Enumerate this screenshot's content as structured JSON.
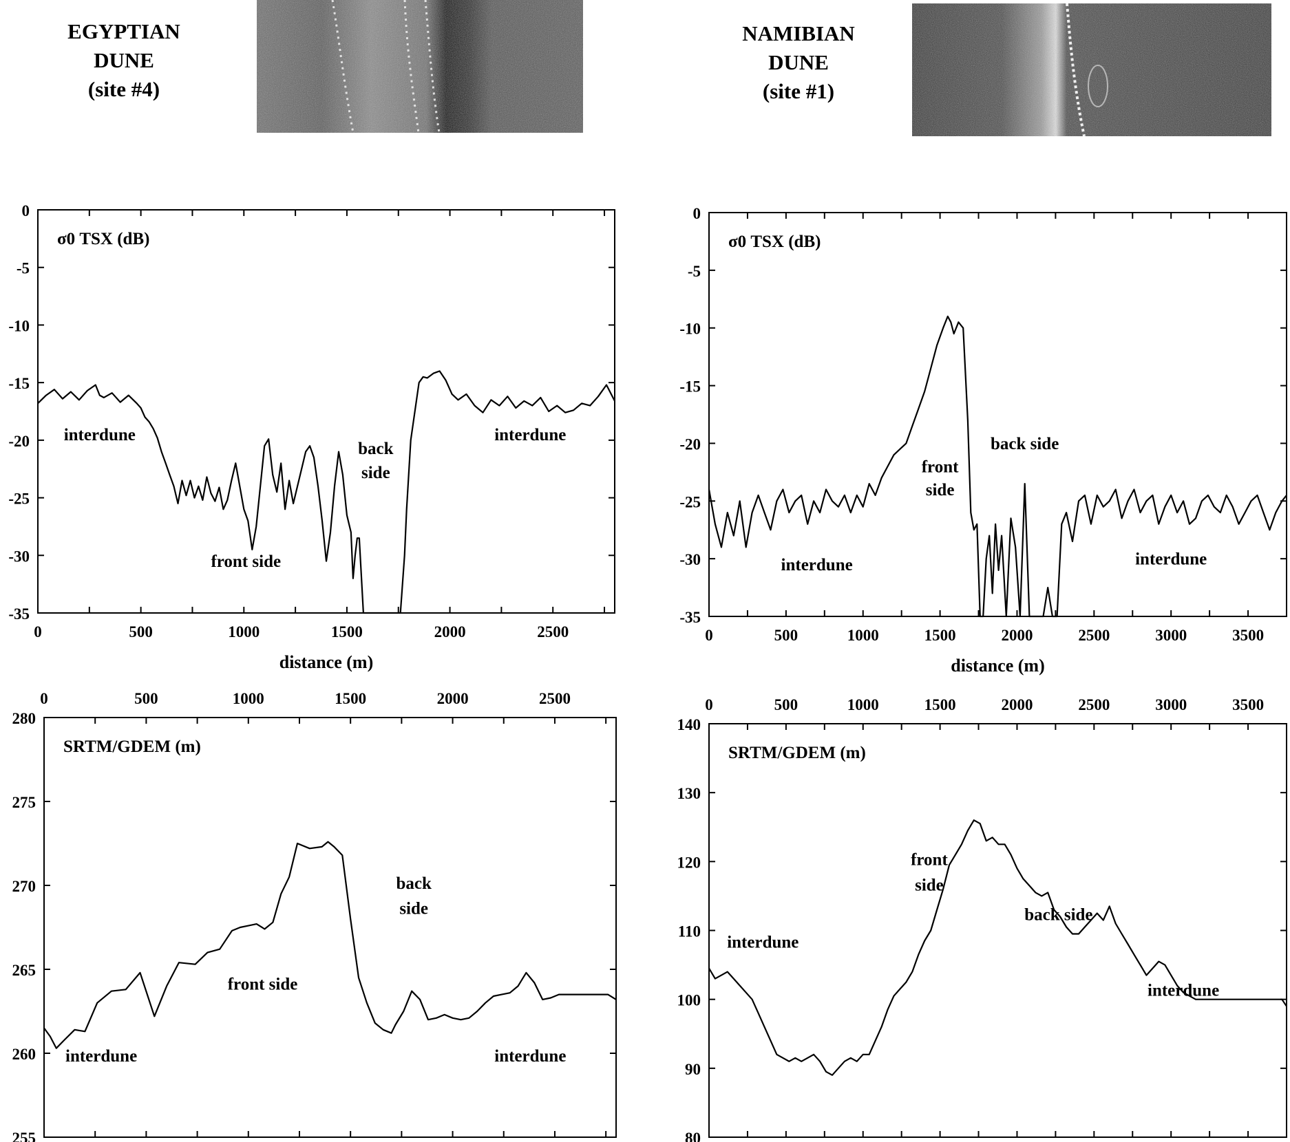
{
  "panels": [
    {
      "title_lines": [
        "EGYPTIAN",
        "DUNE",
        "(site #4)"
      ]
    },
    {
      "title_lines": [
        "NAMIBIAN",
        "DUNE",
        "(site #1)"
      ]
    }
  ],
  "chart_data": [
    {
      "type": "line",
      "panel": "EGYPTIAN DUNE (site #4)",
      "title": "σ0 TSX (dB)",
      "xlabel": "distance (m)",
      "ylabel": "",
      "xlim": [
        0,
        2800
      ],
      "ylim": [
        -35,
        0
      ],
      "xticks": [
        0,
        500,
        1000,
        1500,
        2000,
        2500
      ],
      "yticks": [
        0,
        -5,
        -10,
        -15,
        -20,
        -25,
        -30,
        -35
      ],
      "x_axis_position": "bottom",
      "grid": false,
      "annotations": [
        {
          "text": "interdune",
          "x": 300,
          "y": -20
        },
        {
          "text": "front side",
          "x": 1010,
          "y": -31
        },
        {
          "text": "back",
          "x": 1640,
          "y": -21.2
        },
        {
          "text": "side",
          "x": 1640,
          "y": -23.3
        },
        {
          "text": "interdune",
          "x": 2390,
          "y": -20
        }
      ],
      "series": [
        {
          "x": [
            0,
            40,
            80,
            120,
            160,
            200,
            240,
            280,
            300,
            320,
            360,
            400,
            440,
            480,
            500,
            520,
            540,
            560,
            580,
            600,
            620,
            640,
            660,
            680,
            700,
            720,
            740,
            760,
            780,
            800,
            820,
            840,
            860,
            880,
            900,
            920,
            940,
            960,
            980,
            1000,
            1020,
            1040,
            1060,
            1080,
            1100,
            1120,
            1140,
            1160,
            1180,
            1200,
            1220,
            1240,
            1260,
            1280,
            1300,
            1320,
            1340,
            1360,
            1380,
            1400,
            1420,
            1440,
            1460,
            1480,
            1500,
            1520,
            1530,
            1540,
            1550,
            1560,
            1580,
            1600,
            1620,
            1640,
            1660,
            1680,
            1700,
            1720,
            1740,
            1760,
            1780,
            1790,
            1800,
            1810,
            1830,
            1850,
            1870,
            1890,
            1920,
            1950,
            1980,
            2010,
            2040,
            2080,
            2120,
            2160,
            2200,
            2240,
            2280,
            2320,
            2360,
            2400,
            2440,
            2480,
            2520,
            2560,
            2600,
            2640,
            2680,
            2720,
            2760,
            2800
          ],
          "values": [
            -16.8,
            -16.1,
            -15.6,
            -16.4,
            -15.8,
            -16.5,
            -15.7,
            -15.2,
            -16.1,
            -16.3,
            -15.9,
            -16.7,
            -16.1,
            -16.8,
            -17.2,
            -18.0,
            -18.4,
            -19.0,
            -19.8,
            -21.0,
            -22.0,
            -23.0,
            -24.0,
            -25.5,
            -23.5,
            -24.8,
            -23.5,
            -25.0,
            -24.0,
            -25.2,
            -23.2,
            -24.6,
            -25.3,
            -24.1,
            -26.0,
            -25.2,
            -23.5,
            -22.0,
            -24.0,
            -26.0,
            -27.0,
            -29.5,
            -27.5,
            -24.0,
            -20.5,
            -19.9,
            -23.0,
            -24.5,
            -22.0,
            -26.0,
            -23.5,
            -25.5,
            -24.0,
            -22.5,
            -21.0,
            -20.5,
            -21.5,
            -24.0,
            -27.0,
            -30.5,
            -28.0,
            -24.0,
            -21.0,
            -23.0,
            -26.5,
            -28.0,
            -32.0,
            -30.0,
            -28.5,
            -28.5,
            -35,
            -35,
            -35,
            -35,
            -35,
            -35,
            -35,
            -35,
            -35,
            -35,
            -30.0,
            -26.0,
            -23.0,
            -20.0,
            -17.5,
            -15.0,
            -14.5,
            -14.6,
            -14.2,
            -14.0,
            -14.8,
            -16.0,
            -16.5,
            -16.0,
            -17.0,
            -17.6,
            -16.5,
            -17.0,
            -16.2,
            -17.2,
            -16.6,
            -17.0,
            -16.3,
            -17.5,
            -17.0,
            -17.6,
            -17.4,
            -16.8,
            -17.0,
            -16.2,
            -15.2,
            -16.6
          ]
        }
      ]
    },
    {
      "type": "line",
      "panel": "EGYPTIAN DUNE (site #4)",
      "title": "SRTM/GDEM (m)",
      "xlabel": "",
      "ylabel": "",
      "xlim": [
        0,
        2800
      ],
      "ylim": [
        255,
        280
      ],
      "xticks": [
        0,
        500,
        1000,
        1500,
        2000,
        2500
      ],
      "yticks": [
        280,
        275,
        270,
        265,
        260,
        255
      ],
      "x_axis_position": "top",
      "grid": false,
      "annotations": [
        {
          "text": "interdune",
          "x": 280,
          "y": 259.5
        },
        {
          "text": "front side",
          "x": 1070,
          "y": 263.8
        },
        {
          "text": "back",
          "x": 1810,
          "y": 269.8
        },
        {
          "text": "side",
          "x": 1810,
          "y": 268.3
        },
        {
          "text": "interdune",
          "x": 2380,
          "y": 259.5
        }
      ],
      "series": [
        {
          "x": [
            0,
            30,
            60,
            100,
            150,
            200,
            260,
            330,
            400,
            470,
            540,
            600,
            660,
            740,
            800,
            860,
            920,
            960,
            1000,
            1040,
            1080,
            1120,
            1160,
            1200,
            1240,
            1300,
            1360,
            1390,
            1420,
            1460,
            1500,
            1540,
            1580,
            1620,
            1660,
            1700,
            1720,
            1760,
            1800,
            1840,
            1880,
            1920,
            1960,
            2000,
            2040,
            2080,
            2120,
            2160,
            2200,
            2240,
            2280,
            2320,
            2360,
            2400,
            2440,
            2480,
            2520,
            2560,
            2600,
            2640,
            2680,
            2720,
            2760,
            2800
          ],
          "values": [
            261.5,
            261.0,
            260.3,
            260.8,
            261.4,
            261.3,
            263.0,
            263.7,
            263.8,
            264.8,
            262.2,
            264.0,
            265.4,
            265.3,
            266.0,
            266.2,
            267.3,
            267.5,
            267.6,
            267.7,
            267.4,
            267.8,
            269.5,
            270.5,
            272.5,
            272.2,
            272.3,
            272.6,
            272.3,
            271.8,
            268.0,
            264.5,
            263.0,
            261.8,
            261.4,
            261.2,
            261.7,
            262.5,
            263.7,
            263.2,
            262.0,
            262.1,
            262.3,
            262.1,
            262.0,
            262.1,
            262.5,
            263.0,
            263.4,
            263.5,
            263.6,
            264.0,
            264.8,
            264.2,
            263.2,
            263.3,
            263.5,
            263.5,
            263.5,
            263.5,
            263.5,
            263.5,
            263.5,
            263.2
          ]
        }
      ]
    },
    {
      "type": "line",
      "panel": "NAMIBIAN DUNE (site #1)",
      "title": "σ0 TSX (dB)",
      "xlabel": "distance (m)",
      "ylabel": "",
      "xlim": [
        0,
        3750
      ],
      "ylim": [
        -35,
        0
      ],
      "xticks": [
        0,
        500,
        1000,
        1500,
        2000,
        2500,
        3000,
        3500
      ],
      "yticks": [
        0,
        -5,
        -10,
        -15,
        -20,
        -25,
        -30,
        -35
      ],
      "x_axis_position": "bottom",
      "grid": false,
      "annotations": [
        {
          "text": "interdune",
          "x": 700,
          "y": -31
        },
        {
          "text": "front",
          "x": 1500,
          "y": -22.5
        },
        {
          "text": "side",
          "x": 1500,
          "y": -24.5
        },
        {
          "text": "back side",
          "x": 2050,
          "y": -20.5
        },
        {
          "text": "interdune",
          "x": 3000,
          "y": -30.5
        }
      ],
      "series": [
        {
          "x": [
            0,
            40,
            80,
            120,
            160,
            200,
            240,
            280,
            320,
            360,
            400,
            440,
            480,
            520,
            560,
            600,
            640,
            680,
            720,
            760,
            800,
            840,
            880,
            920,
            960,
            1000,
            1040,
            1080,
            1120,
            1160,
            1200,
            1240,
            1280,
            1320,
            1360,
            1400,
            1440,
            1480,
            1520,
            1550,
            1570,
            1590,
            1620,
            1650,
            1680,
            1700,
            1720,
            1740,
            1760,
            1780,
            1800,
            1820,
            1840,
            1860,
            1880,
            1900,
            1930,
            1960,
            1990,
            2020,
            2050,
            2080,
            2110,
            2140,
            2170,
            2200,
            2230,
            2260,
            2290,
            2320,
            2360,
            2400,
            2440,
            2480,
            2520,
            2560,
            2600,
            2640,
            2680,
            2720,
            2760,
            2800,
            2840,
            2880,
            2920,
            2960,
            3000,
            3040,
            3080,
            3120,
            3160,
            3200,
            3240,
            3280,
            3320,
            3360,
            3400,
            3440,
            3480,
            3520,
            3560,
            3600,
            3640,
            3680,
            3720,
            3750
          ],
          "values": [
            -24.0,
            -27.0,
            -29.0,
            -26.0,
            -28.0,
            -25.0,
            -29.0,
            -26.0,
            -24.5,
            -26.0,
            -27.5,
            -25.0,
            -24.0,
            -26.0,
            -25.0,
            -24.5,
            -27.0,
            -25.0,
            -26.0,
            -24.0,
            -25.0,
            -25.5,
            -24.5,
            -26.0,
            -24.5,
            -25.5,
            -23.5,
            -24.5,
            -23.0,
            -22.0,
            -21.0,
            -20.5,
            -20.0,
            -18.5,
            -17.0,
            -15.5,
            -13.5,
            -11.5,
            -10.0,
            -9.0,
            -9.5,
            -10.5,
            -9.5,
            -10.0,
            -18.0,
            -26.0,
            -27.5,
            -27.0,
            -35,
            -35,
            -30.0,
            -28.0,
            -33.0,
            -27.0,
            -31.0,
            -28.0,
            -35,
            -26.5,
            -29.0,
            -35,
            -23.5,
            -35,
            -35,
            -35,
            -35,
            -32.5,
            -35,
            -35,
            -27.0,
            -26.0,
            -28.5,
            -25.0,
            -24.5,
            -27.0,
            -24.5,
            -25.5,
            -25.0,
            -24.0,
            -26.5,
            -25.0,
            -24.0,
            -26.0,
            -25.0,
            -24.5,
            -27.0,
            -25.5,
            -24.5,
            -26.0,
            -25.0,
            -27.0,
            -26.5,
            -25.0,
            -24.5,
            -25.5,
            -26.0,
            -24.5,
            -25.5,
            -27.0,
            -26.0,
            -25.0,
            -24.5,
            -26.0,
            -27.5,
            -26.0,
            -25.0,
            -24.5
          ]
        }
      ]
    },
    {
      "type": "line",
      "panel": "NAMIBIAN DUNE (site #1)",
      "title": "SRTM/GDEM (m)",
      "xlabel": "",
      "ylabel": "",
      "xlim": [
        0,
        3750
      ],
      "ylim": [
        80,
        140
      ],
      "xticks": [
        0,
        500,
        1000,
        1500,
        2000,
        2500,
        3000,
        3500
      ],
      "yticks": [
        140,
        130,
        120,
        110,
        100,
        90,
        80
      ],
      "x_axis_position": "top",
      "grid": false,
      "annotations": [
        {
          "text": "interdune",
          "x": 350,
          "y": 107.5
        },
        {
          "text": "front",
          "x": 1430,
          "y": 119.5
        },
        {
          "text": "side",
          "x": 1430,
          "y": 115.8
        },
        {
          "text": "back side",
          "x": 2270,
          "y": 111.5
        },
        {
          "text": "interdune",
          "x": 3080,
          "y": 100.5
        }
      ],
      "series": [
        {
          "x": [
            0,
            40,
            80,
            120,
            160,
            200,
            240,
            280,
            320,
            360,
            400,
            440,
            480,
            520,
            560,
            600,
            640,
            680,
            720,
            760,
            800,
            840,
            880,
            920,
            960,
            1000,
            1040,
            1080,
            1120,
            1160,
            1200,
            1240,
            1280,
            1320,
            1360,
            1400,
            1440,
            1480,
            1520,
            1560,
            1600,
            1640,
            1680,
            1720,
            1760,
            1800,
            1840,
            1880,
            1920,
            1960,
            2000,
            2040,
            2080,
            2120,
            2160,
            2200,
            2240,
            2280,
            2320,
            2360,
            2400,
            2440,
            2480,
            2520,
            2560,
            2600,
            2640,
            2680,
            2720,
            2760,
            2800,
            2840,
            2880,
            2920,
            2960,
            3000,
            3040,
            3080,
            3120,
            3160,
            3200,
            3240,
            3280,
            3320,
            3360,
            3400,
            3440,
            3480,
            3520,
            3560,
            3600,
            3640,
            3680,
            3720,
            3750
          ],
          "values": [
            104.5,
            103.0,
            103.5,
            104.0,
            103.0,
            102.0,
            101.0,
            100.0,
            98.0,
            96.0,
            94.0,
            92.0,
            91.5,
            91.0,
            91.5,
            91.0,
            91.5,
            92.0,
            91.0,
            89.5,
            89.0,
            90.0,
            91.0,
            91.5,
            91.0,
            92.0,
            92.0,
            94.0,
            96.0,
            98.5,
            100.5,
            101.5,
            102.5,
            104.0,
            106.5,
            108.5,
            110.0,
            113.0,
            116.0,
            119.5,
            121.0,
            122.5,
            124.5,
            126.0,
            125.5,
            123.0,
            123.5,
            122.5,
            122.5,
            121.0,
            119.0,
            117.5,
            116.5,
            115.5,
            115.0,
            115.5,
            113.0,
            112.0,
            110.5,
            109.5,
            109.5,
            110.5,
            111.5,
            112.5,
            111.5,
            113.5,
            111.0,
            109.5,
            108.0,
            106.5,
            105.0,
            103.5,
            104.5,
            105.5,
            105.0,
            103.5,
            102.0,
            101.0,
            100.5,
            100.0,
            100.0,
            100.0,
            100.0,
            100.0,
            100.0,
            100.0,
            100.0,
            100.0,
            100.0,
            100.0,
            100.0,
            100.0,
            100.0,
            100.0,
            99.0
          ]
        }
      ]
    }
  ],
  "colors": {
    "line": "#000000",
    "axis": "#000000",
    "background": "#ffffff",
    "sar_image": "#4a4a4a"
  }
}
